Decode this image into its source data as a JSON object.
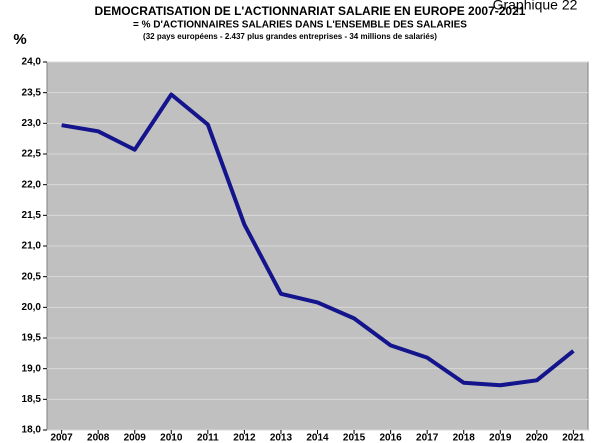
{
  "chart_data": {
    "type": "line",
    "title": "DEMOCRATISATION DE L'ACTIONNARIAT SALARIE EN EUROPE 2007-2021",
    "subtitle": "= % D'ACTIONNAIRES SALARIES DANS L'ENSEMBLE DES SALARIES",
    "note": "(32 pays européens - 2.437 plus grandes entreprises - 34 millions de salariés)",
    "corner_label": "Graphique 22",
    "ylabel": "%",
    "x": [
      2007,
      2008,
      2009,
      2010,
      2011,
      2012,
      2013,
      2014,
      2015,
      2016,
      2017,
      2018,
      2019,
      2020,
      2021
    ],
    "series": [
      {
        "name": "% d'actionnaires salariés",
        "color": "#14148c",
        "values": [
          22.97,
          22.87,
          22.57,
          23.47,
          22.98,
          21.35,
          20.22,
          20.08,
          19.82,
          19.38,
          19.18,
          18.77,
          18.73,
          18.81,
          19.29
        ]
      }
    ],
    "xlim": [
      2006.6,
      2021.4
    ],
    "xticks": [
      2007,
      2008,
      2009,
      2010,
      2011,
      2012,
      2013,
      2014,
      2015,
      2016,
      2017,
      2018,
      2019,
      2020,
      2021
    ],
    "ylim": [
      18,
      24
    ],
    "yticks": [
      {
        "value": 18,
        "label": "18,0"
      },
      {
        "value": 18.5,
        "label": "18,5"
      },
      {
        "value": 19,
        "label": "19,0"
      },
      {
        "value": 19.5,
        "label": "19,5"
      },
      {
        "value": 20,
        "label": "20,0"
      },
      {
        "value": 20.5,
        "label": "20,5"
      },
      {
        "value": 21,
        "label": "21,0"
      },
      {
        "value": 21.5,
        "label": "21,5"
      },
      {
        "value": 22,
        "label": "22,0"
      },
      {
        "value": 22.5,
        "label": "22,5"
      },
      {
        "value": 23,
        "label": "23,0"
      },
      {
        "value": 23.5,
        "label": "23,5"
      },
      {
        "value": 24,
        "label": "24,0"
      }
    ],
    "grid": true
  }
}
